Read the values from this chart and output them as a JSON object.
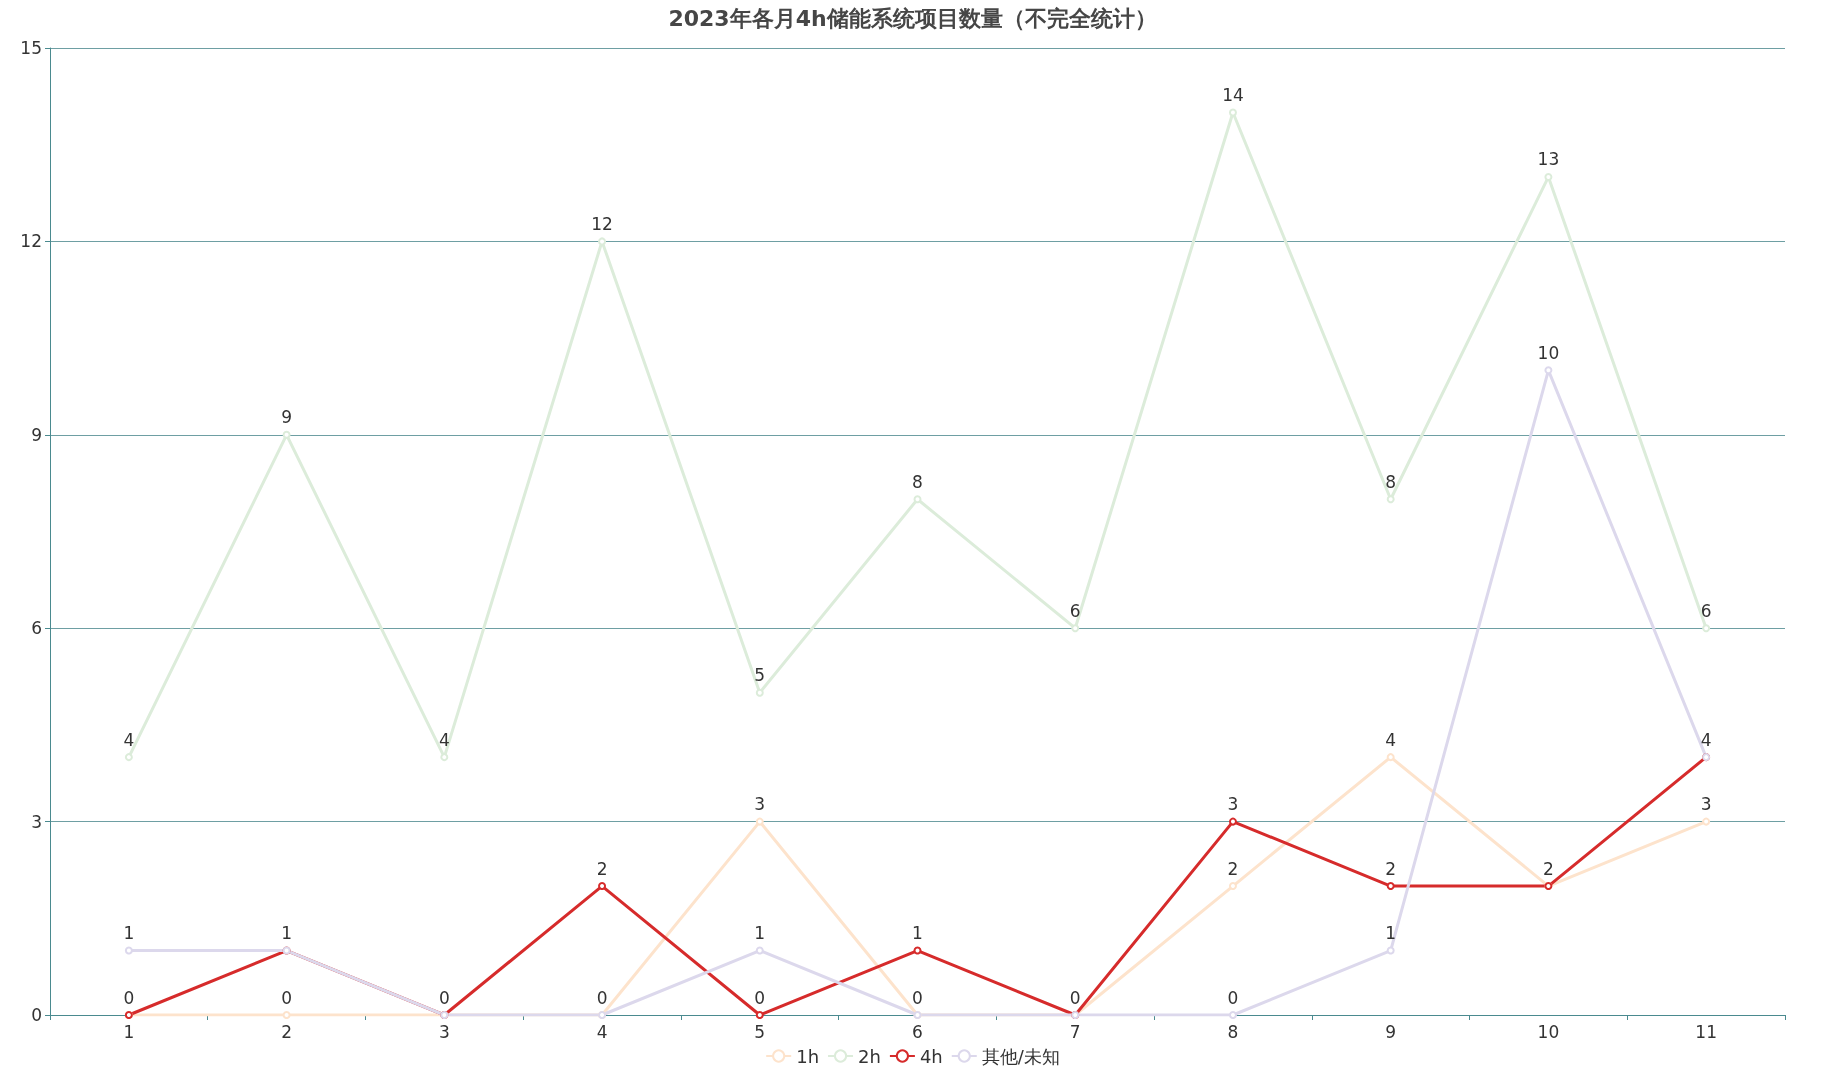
{
  "chart_data": {
    "type": "line",
    "title": "2023年各月4h储能系统项目数量（不完全统计）",
    "categories": [
      "1",
      "2",
      "3",
      "4",
      "5",
      "6",
      "7",
      "8",
      "9",
      "10",
      "11"
    ],
    "series": [
      {
        "name": "1h",
        "color": "#fde3cc",
        "values": [
          0,
          0,
          0,
          0,
          3,
          0,
          0,
          2,
          4,
          2,
          3
        ],
        "value_labels": [
          "0",
          "0",
          "0",
          "0",
          "3",
          "0",
          "0",
          "2",
          "4",
          "2",
          "3"
        ]
      },
      {
        "name": "2h",
        "color": "#dcecda",
        "values": [
          4,
          9,
          4,
          12,
          5,
          8,
          6,
          14,
          8,
          13,
          6
        ],
        "value_labels": [
          "4",
          "9",
          "4",
          "12",
          "5",
          "8",
          "6",
          "14",
          "8",
          "13",
          "6"
        ]
      },
      {
        "name": "4h",
        "color": "#d62b2b",
        "values": [
          0,
          1,
          0,
          2,
          0,
          1,
          0,
          3,
          2,
          2,
          4
        ],
        "value_labels": [
          null,
          "1",
          null,
          "2",
          "0",
          "1",
          null,
          "3",
          "2",
          null,
          "4"
        ]
      },
      {
        "name": "其他/未知",
        "color": "#dcd8ec",
        "values": [
          1,
          1,
          0,
          0,
          1,
          0,
          0,
          0,
          1,
          10,
          4
        ],
        "value_labels": [
          "1",
          null,
          null,
          null,
          "1",
          null,
          null,
          "0",
          "1",
          "10",
          null
        ]
      }
    ],
    "ylim": [
      0,
      15
    ],
    "yticks": [
      0,
      3,
      6,
      9,
      12,
      15
    ],
    "grid": "y",
    "legend": "bottom",
    "marker": "circle",
    "line_style": "solid"
  }
}
